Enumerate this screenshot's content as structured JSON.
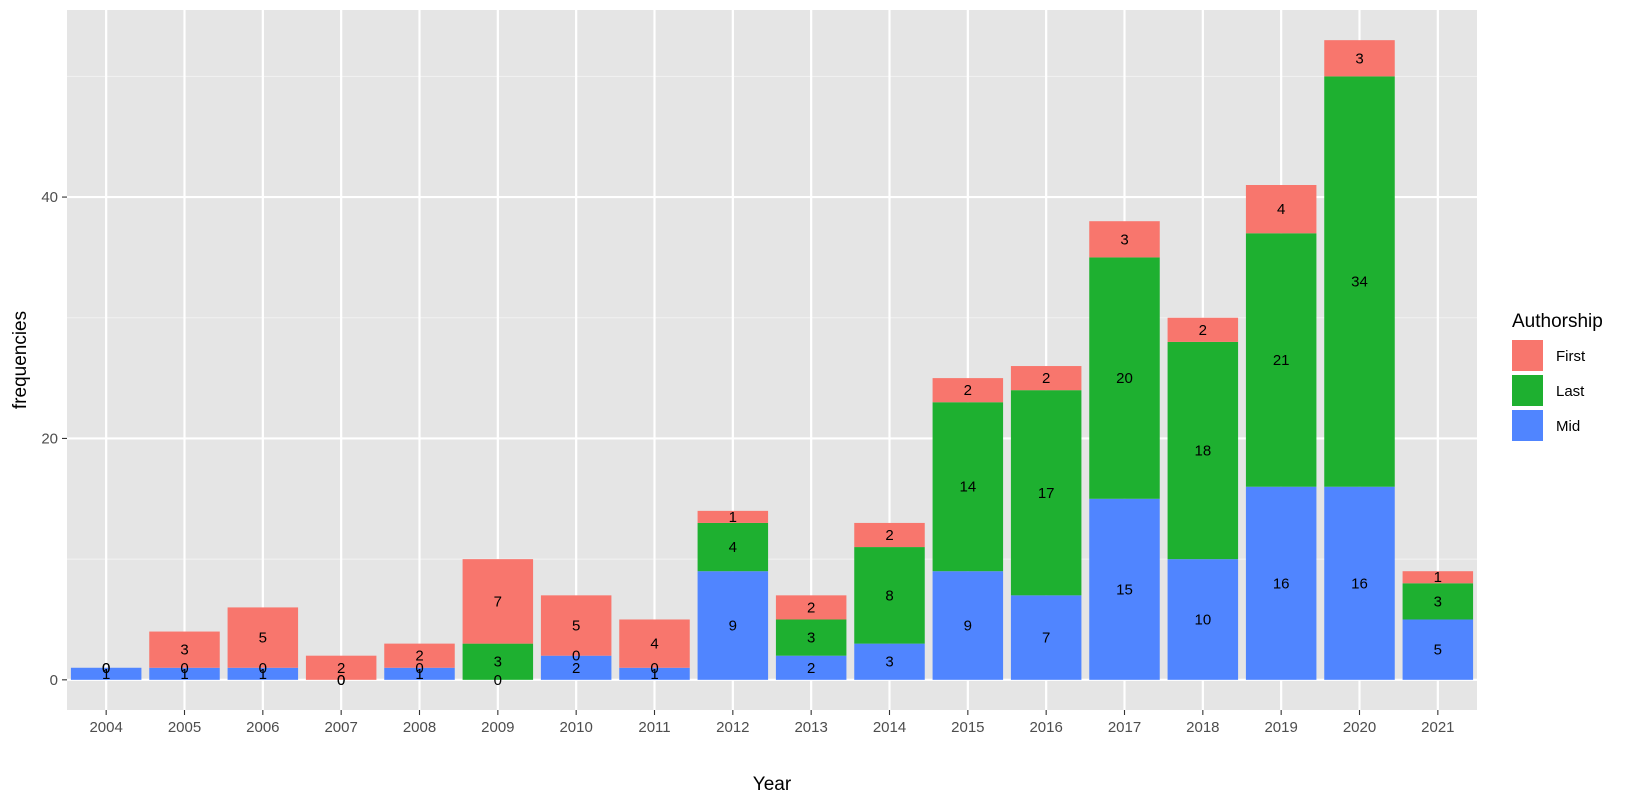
{
  "chart_data": {
    "type": "bar",
    "stacked": true,
    "xlabel": "Year",
    "ylabel": "frequencies",
    "categories": [
      "2004",
      "2005",
      "2006",
      "2007",
      "2008",
      "2009",
      "2010",
      "2011",
      "2012",
      "2013",
      "2014",
      "2015",
      "2016",
      "2017",
      "2018",
      "2019",
      "2020",
      "2021"
    ],
    "series": [
      {
        "name": "First",
        "color": "#F8766D",
        "values": [
          0,
          3,
          5,
          2,
          2,
          7,
          5,
          4,
          1,
          2,
          2,
          2,
          2,
          3,
          2,
          4,
          3,
          1
        ]
      },
      {
        "name": "Last",
        "color": "#1EB030",
        "values": [
          0,
          0,
          0,
          0,
          0,
          3,
          0,
          0,
          4,
          3,
          8,
          14,
          17,
          20,
          18,
          21,
          34,
          3
        ]
      },
      {
        "name": "Mid",
        "color": "#5085FF",
        "values": [
          1,
          1,
          1,
          0,
          1,
          0,
          2,
          1,
          9,
          2,
          3,
          9,
          7,
          15,
          10,
          16,
          16,
          5
        ]
      }
    ],
    "stack_order_bottom_to_top": [
      "Mid",
      "Last",
      "First"
    ],
    "yticks": [
      0,
      20,
      40
    ],
    "ylim": [
      -2.5,
      55.5
    ],
    "legend": {
      "title": "Authorship",
      "position": "right"
    },
    "grid": true,
    "panel_background": "#E5E5E5"
  }
}
